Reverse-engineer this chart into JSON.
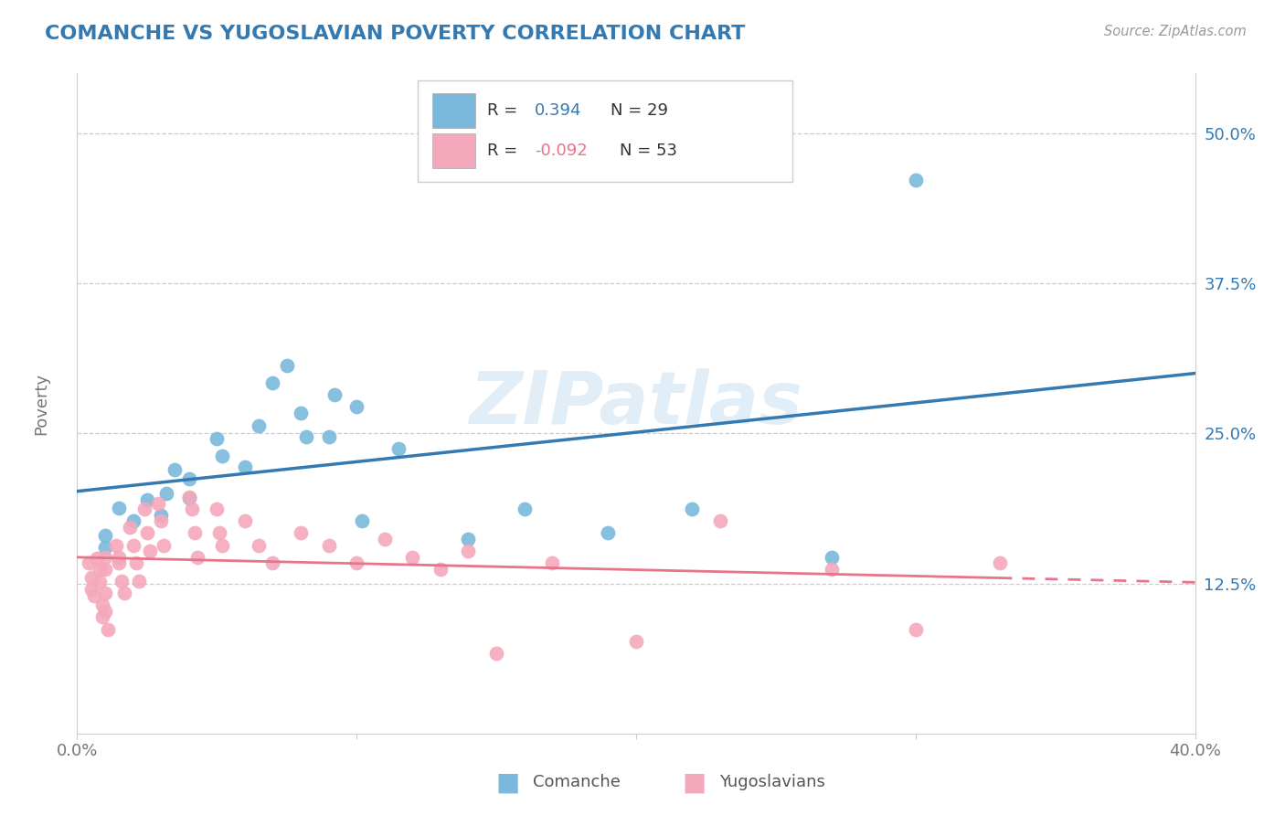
{
  "title": "COMANCHE VS YUGOSLAVIAN POVERTY CORRELATION CHART",
  "source": "Source: ZipAtlas.com",
  "ylabel": "Poverty",
  "xlim": [
    0.0,
    0.4
  ],
  "ylim": [
    0.0,
    0.55
  ],
  "yticks": [
    0.125,
    0.25,
    0.375,
    0.5
  ],
  "ytick_labels": [
    "12.5%",
    "25.0%",
    "37.5%",
    "50.0%"
  ],
  "watermark": "ZIPatlas",
  "blue_R": "0.394",
  "blue_N": "29",
  "pink_R": "-0.092",
  "pink_N": "53",
  "blue_scatter_color": "#7ab8dc",
  "pink_scatter_color": "#f4a8bc",
  "blue_line_color": "#3579b1",
  "pink_line_color": "#e8748a",
  "title_color": "#3579b1",
  "source_color": "#999999",
  "ytick_color": "#3579b1",
  "xtick_color": "#777777",
  "ylabel_color": "#777777",
  "grid_color": "#cccccc",
  "bg_color": "#ffffff",
  "blue_scatter": [
    [
      0.01,
      0.165
    ],
    [
      0.01,
      0.155
    ],
    [
      0.015,
      0.188
    ],
    [
      0.02,
      0.177
    ],
    [
      0.025,
      0.195
    ],
    [
      0.03,
      0.182
    ],
    [
      0.032,
      0.2
    ],
    [
      0.035,
      0.22
    ],
    [
      0.04,
      0.212
    ],
    [
      0.04,
      0.196
    ],
    [
      0.05,
      0.246
    ],
    [
      0.052,
      0.231
    ],
    [
      0.06,
      0.222
    ],
    [
      0.065,
      0.256
    ],
    [
      0.07,
      0.292
    ],
    [
      0.075,
      0.307
    ],
    [
      0.08,
      0.267
    ],
    [
      0.082,
      0.247
    ],
    [
      0.09,
      0.247
    ],
    [
      0.092,
      0.282
    ],
    [
      0.1,
      0.272
    ],
    [
      0.102,
      0.177
    ],
    [
      0.115,
      0.237
    ],
    [
      0.14,
      0.162
    ],
    [
      0.16,
      0.187
    ],
    [
      0.19,
      0.167
    ],
    [
      0.22,
      0.187
    ],
    [
      0.27,
      0.147
    ],
    [
      0.3,
      0.461
    ]
  ],
  "pink_scatter": [
    [
      0.004,
      0.142
    ],
    [
      0.005,
      0.13
    ],
    [
      0.005,
      0.12
    ],
    [
      0.006,
      0.115
    ],
    [
      0.007,
      0.146
    ],
    [
      0.008,
      0.136
    ],
    [
      0.008,
      0.126
    ],
    [
      0.009,
      0.107
    ],
    [
      0.009,
      0.097
    ],
    [
      0.01,
      0.147
    ],
    [
      0.01,
      0.137
    ],
    [
      0.01,
      0.117
    ],
    [
      0.01,
      0.102
    ],
    [
      0.011,
      0.087
    ],
    [
      0.014,
      0.157
    ],
    [
      0.015,
      0.147
    ],
    [
      0.015,
      0.142
    ],
    [
      0.016,
      0.127
    ],
    [
      0.017,
      0.117
    ],
    [
      0.019,
      0.172
    ],
    [
      0.02,
      0.157
    ],
    [
      0.021,
      0.142
    ],
    [
      0.022,
      0.127
    ],
    [
      0.024,
      0.187
    ],
    [
      0.025,
      0.167
    ],
    [
      0.026,
      0.152
    ],
    [
      0.029,
      0.192
    ],
    [
      0.03,
      0.177
    ],
    [
      0.031,
      0.157
    ],
    [
      0.04,
      0.197
    ],
    [
      0.041,
      0.187
    ],
    [
      0.042,
      0.167
    ],
    [
      0.043,
      0.147
    ],
    [
      0.05,
      0.187
    ],
    [
      0.051,
      0.167
    ],
    [
      0.052,
      0.157
    ],
    [
      0.06,
      0.177
    ],
    [
      0.065,
      0.157
    ],
    [
      0.07,
      0.142
    ],
    [
      0.08,
      0.167
    ],
    [
      0.09,
      0.157
    ],
    [
      0.1,
      0.142
    ],
    [
      0.11,
      0.162
    ],
    [
      0.12,
      0.147
    ],
    [
      0.13,
      0.137
    ],
    [
      0.14,
      0.152
    ],
    [
      0.15,
      0.067
    ],
    [
      0.17,
      0.142
    ],
    [
      0.2,
      0.077
    ],
    [
      0.23,
      0.177
    ],
    [
      0.27,
      0.137
    ],
    [
      0.3,
      0.087
    ],
    [
      0.33,
      0.142
    ]
  ]
}
